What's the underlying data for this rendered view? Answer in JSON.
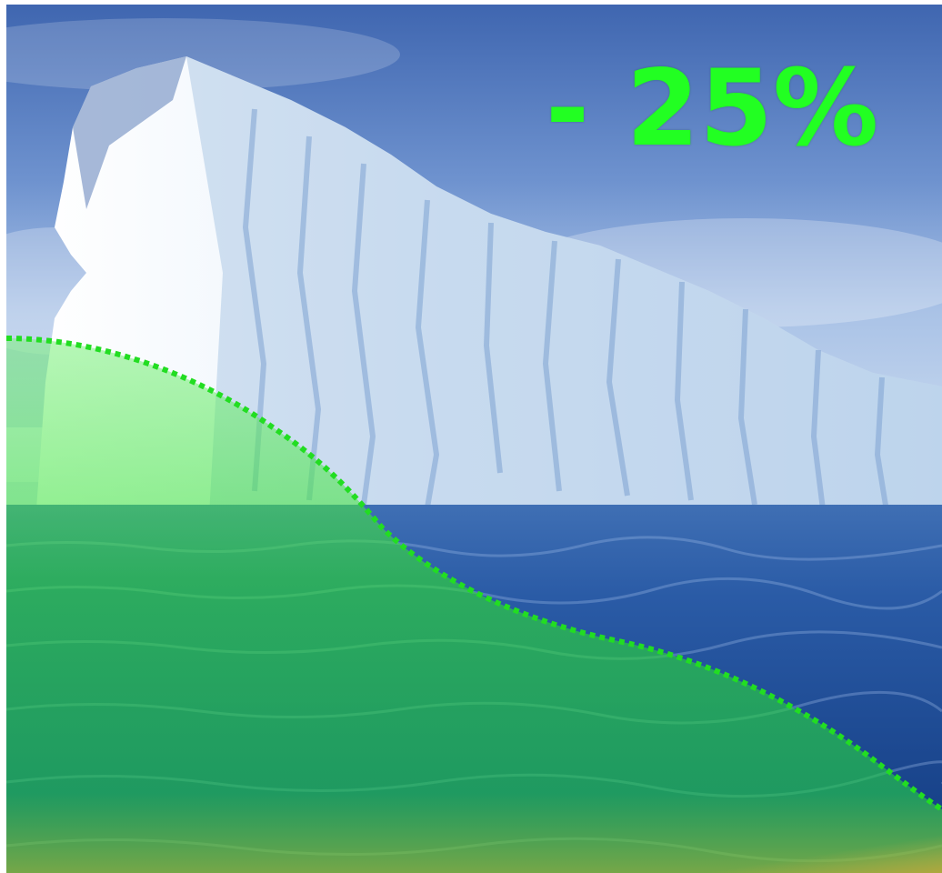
{
  "discount": {
    "label": "- 25%",
    "color": "#22ff22"
  },
  "overlay": {
    "fill_color": "#2ee02e",
    "border_color": "#22dd22",
    "border_style": "dotted"
  },
  "scene": {
    "sky_color": "#5f86c4",
    "ice_color": "#f4f8fc",
    "sea_color": "#1e4f9a"
  }
}
